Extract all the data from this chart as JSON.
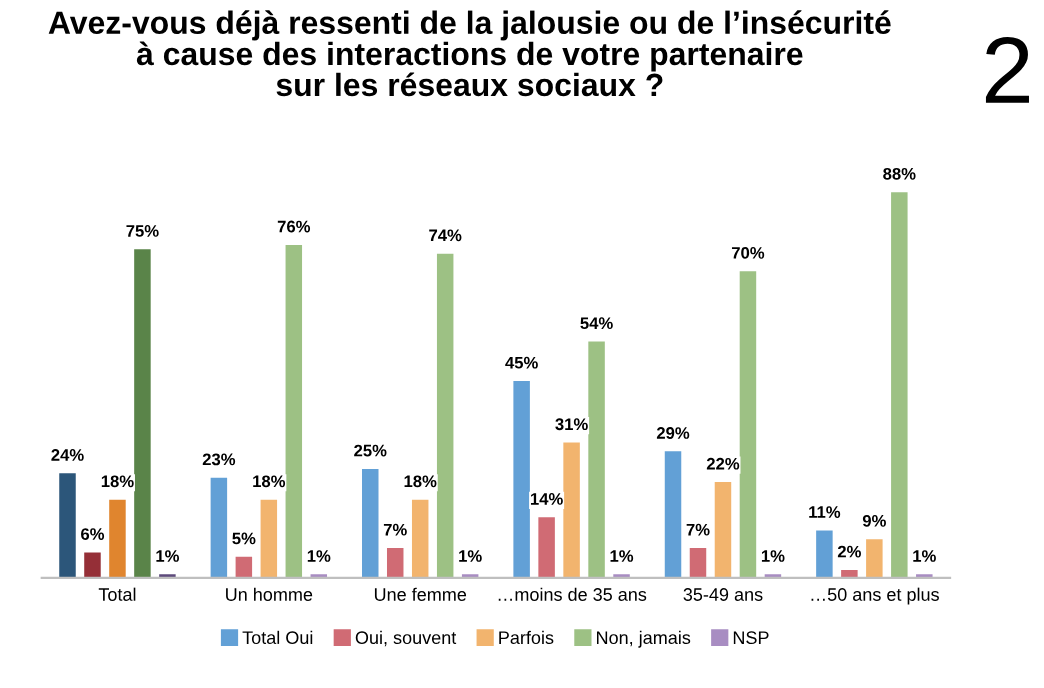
{
  "chart_data": {
    "type": "bar",
    "title": "Avez-vous déjà ressenti de la jalousie ou de l’insécurité\nà cause des interactions de votre partenaire\nsur les réseaux sociaux ?",
    "annotations": [
      "2"
    ],
    "categories": [
      "Total",
      "Un homme",
      "Une femme",
      "…moins de 35 ans",
      "35-49 ans",
      "…50 ans et plus"
    ],
    "legend": "bottom",
    "tick_labels": "x",
    "series": [
      {
        "name": "Total Oui",
        "color": "#62a0d6",
        "colors": [
          "#2c567a",
          "#62a0d6",
          "#62a0d6",
          "#62a0d6",
          "#62a0d6",
          "#62a0d6"
        ],
        "values": [
          24,
          23,
          25,
          45,
          29,
          11
        ],
        "value_labels": [
          "24%",
          "23%",
          "25%",
          "45%",
          "29%",
          "11%"
        ]
      },
      {
        "name": "Oui, souvent",
        "color": "#d06b74",
        "colors": [
          "#952f37",
          "#d06b74",
          "#d06b74",
          "#d06b74",
          "#d06b74",
          "#d06b74"
        ],
        "values": [
          6,
          5,
          7,
          14,
          7,
          2
        ],
        "value_labels": [
          "6%",
          "5%",
          "7%",
          "14%",
          "7%",
          "2%"
        ]
      },
      {
        "name": "Parfois",
        "color": "#f2b46e",
        "colors": [
          "#e0852e",
          "#f2b46e",
          "#f2b46e",
          "#f2b46e",
          "#f2b46e",
          "#f2b46e"
        ],
        "values": [
          18,
          18,
          18,
          31,
          22,
          9
        ],
        "value_labels": [
          "18%",
          "18%",
          "18%",
          "31%",
          "22%",
          "9%"
        ]
      },
      {
        "name": "Non, jamais",
        "color": "#9dc184",
        "colors": [
          "#5a8449",
          "#9dc184",
          "#9dc184",
          "#9dc184",
          "#9dc184",
          "#9dc184"
        ],
        "values": [
          75,
          76,
          74,
          54,
          70,
          88
        ],
        "value_labels": [
          "75%",
          "76%",
          "74%",
          "54%",
          "70%",
          "88%"
        ]
      },
      {
        "name": "NSP",
        "color": "#a88dc2",
        "colors": [
          "#5d4a7b",
          "#a88dc2",
          "#a88dc2",
          "#a88dc2",
          "#a88dc2",
          "#a88dc2"
        ],
        "values": [
          1,
          1,
          1,
          1,
          1,
          1
        ],
        "value_labels": [
          "1%",
          "1%",
          "1%",
          "1%",
          "1%",
          "1%"
        ]
      }
    ]
  }
}
